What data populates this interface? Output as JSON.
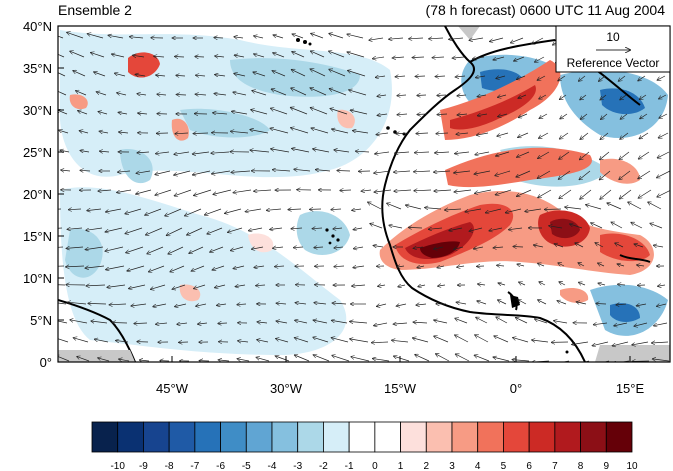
{
  "title_left": "Ensemble 2",
  "title_right": "(78 h forecast) 0600 UTC 11 Aug 2004",
  "lat_ticks": [
    "40°N",
    "35°N",
    "30°N",
    "25°N",
    "20°N",
    "15°N",
    "10°N",
    "5°N",
    "0°"
  ],
  "lon_ticks": [
    "45°W",
    "30°W",
    "15°W",
    "0°",
    "15°E"
  ],
  "reference_vector": {
    "value": "10",
    "label": "Reference Vector"
  },
  "colorbar": {
    "labels": [
      "-10",
      "-9",
      "-8",
      "-7",
      "-6",
      "-5",
      "-4",
      "-3",
      "-2",
      "-1",
      "0",
      "1",
      "2",
      "3",
      "4",
      "5",
      "6",
      "7",
      "8",
      "9",
      "10"
    ],
    "colors": [
      "#08224d",
      "#0a3172",
      "#17448f",
      "#1f5aa6",
      "#2672b8",
      "#3f8dc6",
      "#60a5d3",
      "#85c0df",
      "#acd8e8",
      "#d6eef8",
      "#ffffff",
      "#ffffff",
      "#fde0dc",
      "#fbbfb0",
      "#f79b84",
      "#f1725b",
      "#e4473a",
      "#cc2a25",
      "#b11a1e",
      "#8c0f16",
      "#650008"
    ]
  }
}
